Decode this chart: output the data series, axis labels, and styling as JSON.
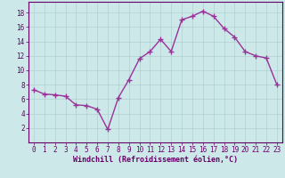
{
  "x": [
    0,
    1,
    2,
    3,
    4,
    5,
    6,
    7,
    8,
    9,
    10,
    11,
    12,
    13,
    14,
    15,
    16,
    17,
    18,
    19,
    20,
    21,
    22,
    23
  ],
  "y": [
    7.3,
    6.7,
    6.6,
    6.4,
    5.2,
    5.1,
    4.6,
    1.8,
    6.2,
    8.7,
    11.6,
    12.6,
    14.3,
    12.6,
    17.0,
    17.5,
    18.2,
    17.5,
    15.8,
    14.6,
    12.6,
    12.0,
    11.7,
    8.0
  ],
  "line_color": "#993399",
  "marker": "+",
  "marker_size": 4,
  "bg_color": "#cce8e8",
  "grid_color": "#b0d0d0",
  "xlabel": "Windchill (Refroidissement éolien,°C)",
  "xlim": [
    -0.5,
    23.5
  ],
  "ylim": [
    0,
    19.5
  ],
  "yticks": [
    2,
    4,
    6,
    8,
    10,
    12,
    14,
    16,
    18
  ],
  "xticks": [
    0,
    1,
    2,
    3,
    4,
    5,
    6,
    7,
    8,
    9,
    10,
    11,
    12,
    13,
    14,
    15,
    16,
    17,
    18,
    19,
    20,
    21,
    22,
    23
  ],
  "tick_color": "#660066",
  "label_color": "#660066",
  "spine_color": "#660066",
  "tick_labelsize": 5.5,
  "xlabel_fontsize": 6.0,
  "linewidth": 1.0,
  "marker_linewidth": 1.0
}
